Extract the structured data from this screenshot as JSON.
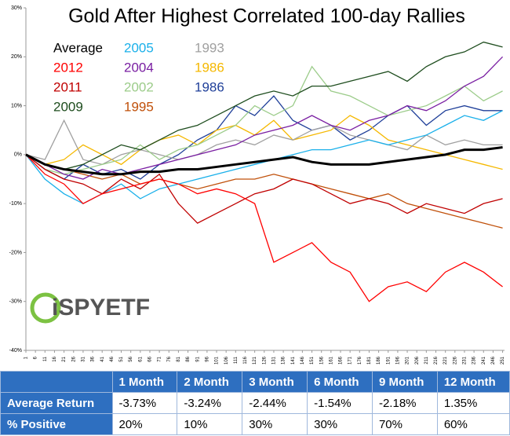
{
  "chart_data": {
    "type": "line",
    "title": "Gold After Highest Correlated 100-day Rallies",
    "logo": "iSPYETF",
    "x": [
      1,
      11,
      21,
      31,
      41,
      51,
      61,
      71,
      81,
      91,
      101,
      111,
      121,
      131,
      141,
      151,
      161,
      171,
      181,
      191,
      201,
      211,
      221,
      231,
      241,
      251
    ],
    "xlim": [
      1,
      252
    ],
    "xticks": [
      1,
      6,
      11,
      16,
      21,
      26,
      31,
      36,
      41,
      46,
      51,
      56,
      61,
      66,
      71,
      76,
      81,
      86,
      91,
      96,
      101,
      106,
      111,
      116,
      121,
      126,
      131,
      136,
      141,
      146,
      151,
      156,
      161,
      166,
      171,
      176,
      181,
      186,
      191,
      196,
      201,
      206,
      211,
      216,
      221,
      226,
      231,
      236,
      241,
      246,
      251
    ],
    "ylim": [
      -40,
      30
    ],
    "yticks": [
      {
        "value": -40,
        "label": "-40%"
      },
      {
        "value": -30,
        "label": "-30%"
      },
      {
        "value": -20,
        "label": "-20%"
      },
      {
        "value": -10,
        "label": "-10%"
      },
      {
        "value": 0,
        "label": "0%"
      },
      {
        "value": 10,
        "label": "10%"
      },
      {
        "value": 20,
        "label": "20%"
      },
      {
        "value": 30,
        "label": "30%"
      }
    ],
    "series": [
      {
        "name": "Average",
        "color": "#000000",
        "values": [
          0,
          -2,
          -3,
          -3.5,
          -4,
          -4,
          -3.5,
          -3.5,
          -3,
          -3,
          -2.5,
          -2,
          -1.5,
          -1,
          -0.5,
          -1.5,
          -2,
          -2,
          -2,
          -1.5,
          -1,
          -0.5,
          0,
          1,
          1,
          1.5
        ]
      },
      {
        "name": "2012",
        "color": "#ff0000",
        "values": [
          0,
          -4,
          -6,
          -10,
          -8,
          -7,
          -6,
          -5,
          -6,
          -8,
          -7,
          -8,
          -10,
          -22,
          -20,
          -18,
          -22,
          -24,
          -30,
          -27,
          -26,
          -28,
          -24,
          -22,
          -24,
          -27
        ]
      },
      {
        "name": "2011",
        "color": "#c00000",
        "values": [
          0,
          -3,
          -5,
          -6,
          -8,
          -5,
          -7,
          -4,
          -10,
          -14,
          -12,
          -10,
          -8,
          -7,
          -5,
          -6,
          -8,
          -10,
          -9,
          -10,
          -12,
          -10,
          -11,
          -12,
          -10,
          -9
        ]
      },
      {
        "name": "2009",
        "color": "#1e4d1e",
        "values": [
          0,
          -2,
          -3,
          -2,
          0,
          2,
          1,
          3,
          5,
          6,
          8,
          10,
          12,
          13,
          12,
          14,
          14,
          15,
          16,
          17,
          15,
          18,
          20,
          21,
          23,
          22
        ]
      },
      {
        "name": "2005",
        "color": "#1ab0ea",
        "values": [
          0,
          -5,
          -8,
          -10,
          -8,
          -6,
          -9,
          -7,
          -6,
          -5,
          -4,
          -3,
          -2,
          -1,
          0,
          1,
          1,
          2,
          3,
          2,
          3,
          4,
          6,
          8,
          7,
          9
        ]
      },
      {
        "name": "2004",
        "color": "#7a1fa2",
        "values": [
          0,
          -2,
          -4,
          -5,
          -3,
          -4,
          -3,
          -2,
          -1,
          0,
          1,
          2,
          4,
          5,
          6,
          8,
          6,
          5,
          7,
          8,
          10,
          9,
          11,
          14,
          16,
          20
        ]
      },
      {
        "name": "2002",
        "color": "#9ccc8a",
        "values": [
          0,
          -3,
          -4,
          -3,
          -2,
          -1,
          2,
          -1,
          1,
          2,
          4,
          6,
          10,
          8,
          10,
          18,
          13,
          12,
          10,
          8,
          9,
          10,
          12,
          14,
          11,
          13
        ]
      },
      {
        "name": "1995",
        "color": "#c0500a",
        "values": [
          0,
          -2,
          -3,
          -4,
          -5,
          -4,
          -6,
          -5,
          -6,
          -7,
          -6,
          -5,
          -5,
          -4,
          -5,
          -6,
          -7,
          -8,
          -9,
          -8,
          -10,
          -11,
          -12,
          -13,
          -14,
          -15
        ]
      },
      {
        "name": "1993",
        "color": "#a0a0a0",
        "values": [
          0,
          -1,
          7,
          -1,
          -2,
          0,
          1,
          0,
          -1,
          0,
          2,
          3,
          2,
          4,
          3,
          5,
          6,
          4,
          3,
          2,
          1,
          4,
          2,
          3,
          2,
          2
        ]
      },
      {
        "name": "1986",
        "color": "#f5b800",
        "values": [
          0,
          -2,
          -1,
          2,
          0,
          -2,
          1,
          3,
          4,
          2,
          5,
          6,
          4,
          7,
          3,
          4,
          5,
          8,
          6,
          3,
          2,
          1,
          0,
          -1,
          -2,
          -3
        ]
      },
      {
        "name": "1986",
        "color": "#1f3f99",
        "values": [
          0,
          -3,
          -5,
          -2,
          -4,
          -3,
          -5,
          -2,
          0,
          3,
          5,
          10,
          8,
          12,
          7,
          5,
          6,
          3,
          5,
          8,
          10,
          6,
          9,
          10,
          9,
          9
        ]
      }
    ]
  },
  "table": {
    "header": [
      "1 Month",
      "2 Month",
      "3 Month",
      "6 Month",
      "9 Month",
      "12 Month"
    ],
    "rows": [
      {
        "label": "Average Return",
        "values": [
          "-3.73%",
          "-3.24%",
          "-2.44%",
          "-1.54%",
          "-2.18%",
          "1.35%"
        ]
      },
      {
        "label": "% Positive",
        "values": [
          "20%",
          "10%",
          "30%",
          "30%",
          "70%",
          "60%"
        ]
      }
    ]
  }
}
